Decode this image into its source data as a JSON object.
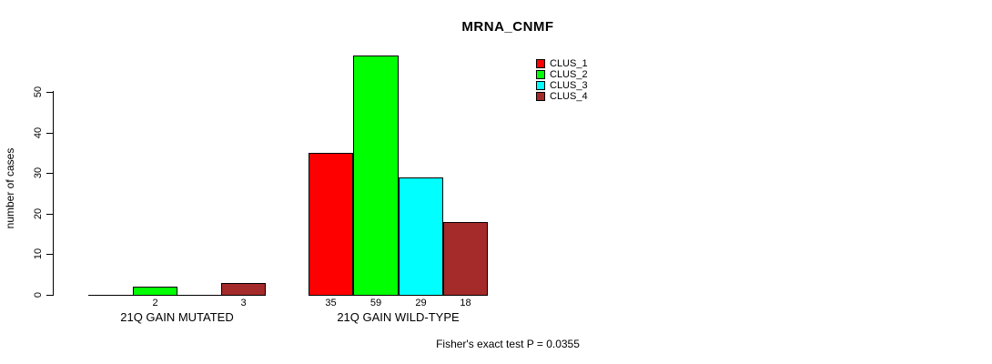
{
  "chart_data": {
    "type": "bar",
    "grouped": true,
    "title": "MRNA_CNMF",
    "ylabel": "number of cases",
    "xlabel": "",
    "categories": [
      "21Q GAIN MUTATED",
      "21Q GAIN WILD-TYPE"
    ],
    "series": [
      {
        "name": "CLUS_1",
        "color": "#FF0000",
        "values": [
          0,
          35
        ]
      },
      {
        "name": "CLUS_2",
        "color": "#00FF00",
        "values": [
          2,
          59
        ]
      },
      {
        "name": "CLUS_3",
        "color": "#00FFFF",
        "values": [
          0,
          29
        ]
      },
      {
        "name": "CLUS_4",
        "color": "#A52A2A",
        "values": [
          3,
          18
        ]
      }
    ],
    "bar_labels": [
      [
        "",
        "2",
        "",
        "3"
      ],
      [
        "35",
        "59",
        "29",
        "18"
      ]
    ],
    "y_ticks": [
      0,
      10,
      20,
      30,
      40,
      50
    ],
    "ylim": [
      0,
      59
    ],
    "grid": false,
    "legend_position": "top-right",
    "annotation": "Fisher's exact test P = 0.0355"
  },
  "colors": {
    "background": "#FFFFFF",
    "axis": "#000000",
    "text": "#000000"
  }
}
